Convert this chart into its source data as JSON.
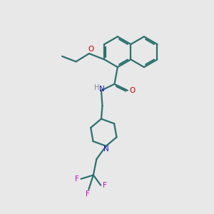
{
  "bg_color": "#e8e8e8",
  "bond_color": "#2d7070",
  "N_color": "#1a1acc",
  "O_color": "#cc0000",
  "F_color": "#cc00cc",
  "H_color": "#888888",
  "line_width": 1.6,
  "fig_w": 3.0,
  "fig_h": 3.0,
  "dpi": 100,
  "xlim": [
    0,
    10
  ],
  "ylim": [
    0,
    10
  ]
}
